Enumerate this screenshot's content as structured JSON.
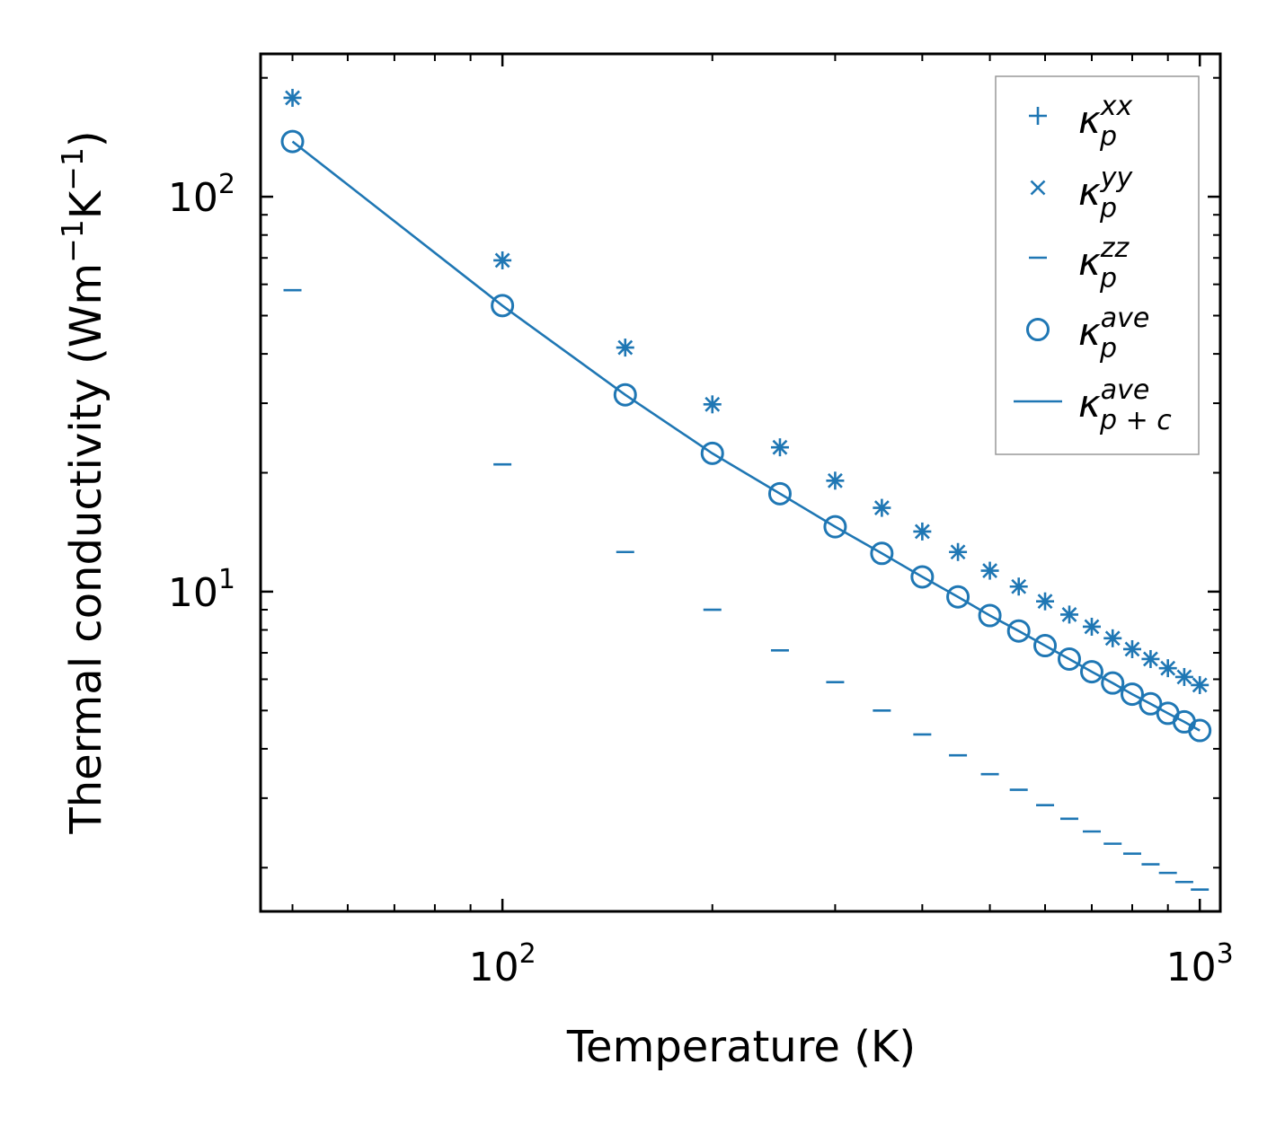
{
  "chart_data": {
    "type": "scatter",
    "xscale": "log",
    "yscale": "log",
    "xlabel": "Temperature (K)",
    "ylabel_prefix": "Thermal conductivity (Wm",
    "ylabel_mid": "K",
    "ylabel_suffix": ")",
    "ylabel_exp": "−1",
    "xlim": [
      45,
      1070
    ],
    "ylim": [
      1.55,
      230
    ],
    "x_ticks": [
      {
        "base": "10",
        "exp": "2",
        "value": 100
      },
      {
        "base": "10",
        "exp": "3",
        "value": 1000
      }
    ],
    "y_ticks": [
      {
        "base": "10",
        "exp": "1",
        "value": 10
      },
      {
        "base": "10",
        "exp": "2",
        "value": 100
      }
    ],
    "legend_position": "top-right",
    "color": "#1f77b4",
    "x": [
      50,
      100,
      150,
      200,
      250,
      300,
      350,
      400,
      450,
      500,
      550,
      600,
      650,
      700,
      750,
      800,
      850,
      900,
      950,
      1000
    ],
    "series": [
      {
        "name": "kxx",
        "label_base": "κ",
        "label_sub": "p",
        "label_sup": "xx",
        "marker": "plus",
        "values": [
          178,
          69,
          41.5,
          29.8,
          23.2,
          19.1,
          16.3,
          14.2,
          12.6,
          11.3,
          10.3,
          9.45,
          8.75,
          8.15,
          7.62,
          7.15,
          6.75,
          6.4,
          6.08,
          5.8
        ]
      },
      {
        "name": "kyy",
        "label_base": "κ",
        "label_sub": "p",
        "label_sup": "yy",
        "marker": "x",
        "values": [
          178,
          69,
          41.5,
          29.8,
          23.2,
          19.1,
          16.3,
          14.2,
          12.6,
          11.3,
          10.3,
          9.45,
          8.75,
          8.15,
          7.62,
          7.15,
          6.75,
          6.4,
          6.08,
          5.8
        ]
      },
      {
        "name": "kzz",
        "label_base": "κ",
        "label_sub": "p",
        "label_sup": "zz",
        "marker": "dash",
        "values": [
          58,
          21,
          12.6,
          9.0,
          7.1,
          5.9,
          5.0,
          4.35,
          3.85,
          3.45,
          3.15,
          2.88,
          2.66,
          2.47,
          2.3,
          2.17,
          2.04,
          1.94,
          1.84,
          1.76
        ]
      },
      {
        "name": "kave",
        "label_base": "κ",
        "label_sub": "p",
        "label_sup": "ave",
        "marker": "circle",
        "values": [
          138,
          53,
          31.5,
          22.4,
          17.7,
          14.6,
          12.5,
          10.9,
          9.7,
          8.7,
          7.95,
          7.3,
          6.75,
          6.27,
          5.87,
          5.5,
          5.2,
          4.92,
          4.68,
          4.45
        ]
      },
      {
        "name": "kave_pc",
        "label_base": "κ",
        "label_sub": "p + c",
        "label_sup": "ave",
        "marker": "line",
        "values": [
          138,
          53,
          31.5,
          22.4,
          17.7,
          14.6,
          12.5,
          10.9,
          9.7,
          8.7,
          7.95,
          7.3,
          6.75,
          6.27,
          5.87,
          5.5,
          5.2,
          4.92,
          4.68,
          4.45
        ]
      }
    ]
  }
}
